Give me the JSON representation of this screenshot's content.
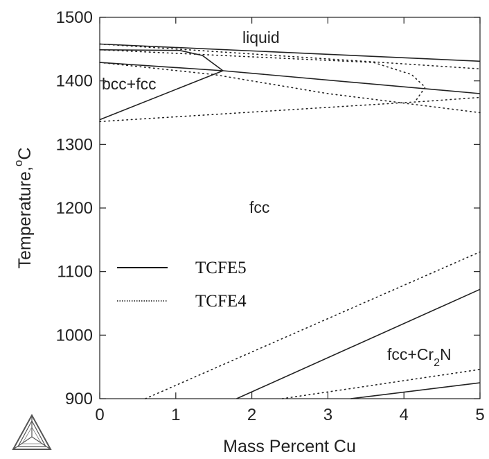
{
  "chart_data": {
    "type": "line",
    "xlabel": "Mass Percent Cu",
    "ylabel_text": "Temperature,",
    "ylabel_unit": "C",
    "ylabel_degree": "o",
    "xlim": [
      0,
      5
    ],
    "ylim": [
      900,
      1500
    ],
    "x_ticks": [
      "0",
      "1",
      "2",
      "3",
      "4",
      "5"
    ],
    "y_ticks": [
      "900",
      "1000",
      "1100",
      "1200",
      "1300",
      "1400",
      "1500"
    ],
    "legend_placement": "center-left",
    "region_labels": {
      "liquid": "liquid",
      "bcc_fcc": "bcc+fcc",
      "fcc": "fcc",
      "fcc_cr2n_main": "fcc+Cr",
      "fcc_cr2n_sub": "2",
      "fcc_cr2n_tail": "N"
    },
    "series": [
      {
        "name": "TCFE5",
        "style": "solid",
        "lines": [
          [
            [
              0,
              1458
            ],
            [
              5,
              1431
            ]
          ],
          [
            [
              0,
              1449
            ],
            [
              1.05,
              1448
            ],
            [
              1.35,
              1440
            ],
            [
              1.62,
              1416
            ]
          ],
          [
            [
              0,
              1429
            ],
            [
              1.62,
              1416
            ]
          ],
          [
            [
              0,
              1339
            ],
            [
              1.62,
              1416
            ]
          ],
          [
            [
              1.62,
              1416
            ],
            [
              5,
              1380
            ]
          ],
          [
            [
              1.8,
              900
            ],
            [
              5,
              1072
            ]
          ],
          [
            [
              3.3,
              900
            ],
            [
              5,
              925
            ]
          ]
        ]
      },
      {
        "name": "TCFE4",
        "style": "dotted",
        "lines": [
          [
            [
              0,
              1458
            ],
            [
              5,
              1419
            ]
          ],
          [
            [
              0,
              1449
            ],
            [
              3.6,
              1429
            ],
            [
              4.1,
              1410
            ],
            [
              4.28,
              1390
            ],
            [
              4.15,
              1368
            ]
          ],
          [
            [
              0,
              1429
            ],
            [
              1.5,
              1410
            ],
            [
              3.0,
              1380
            ],
            [
              5,
              1350
            ]
          ],
          [
            [
              0,
              1336
            ],
            [
              4.3,
              1368
            ],
            [
              5,
              1374
            ]
          ],
          [
            [
              0.6,
              900
            ],
            [
              5,
              1131
            ]
          ],
          [
            [
              2.4,
              900
            ],
            [
              5,
              946
            ]
          ]
        ]
      }
    ]
  },
  "legend": {
    "items": [
      {
        "label": "TCFE5",
        "style": "solid"
      },
      {
        "label": "TCFE4",
        "style": "dotted"
      }
    ]
  },
  "colors": {
    "line": "#222222",
    "logo": "#555555"
  },
  "logo": {
    "icon": "thermo-calc-logo-icon"
  }
}
